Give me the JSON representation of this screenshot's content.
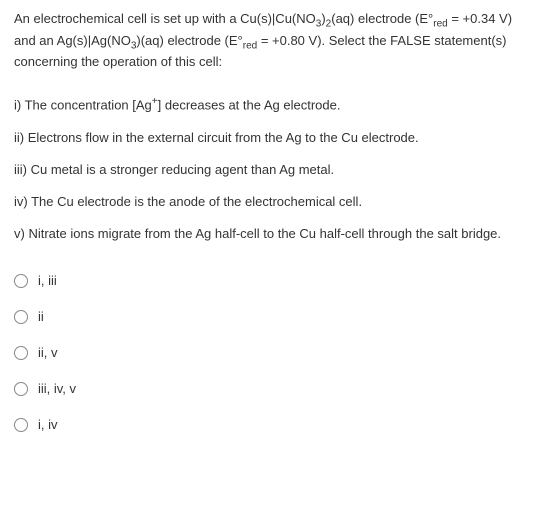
{
  "prompt": {
    "pre": "An electrochemical cell is set up with a Cu(s)|Cu(NO",
    "sub1": "3",
    "mid1": ")",
    "sub2": "2",
    "mid2": "(aq) electrode (E°",
    "sub3": "red",
    "mid3": " = +0.34 V) and an Ag(s)|Ag(NO",
    "sub4": "3",
    "mid4": ")(aq) electrode (E°",
    "sub5": "red",
    "end": " = +0.80 V). Select the FALSE statement(s) concerning the operation of this cell:"
  },
  "statements": {
    "s1_pre": "i) The concentration [Ag",
    "s1_sup": "+",
    "s1_end": "] decreases at the Ag electrode.",
    "s2": "ii) Electrons flow in the external circuit from the Ag to the Cu electrode.",
    "s3": "iii) Cu metal is a stronger reducing agent than Ag metal.",
    "s4": "iv) The Cu electrode is the anode of the electrochemical cell.",
    "s5": "v) Nitrate ions migrate from the Ag half-cell to the Cu half-cell through the salt bridge."
  },
  "options": {
    "o1": "i, iii",
    "o2": "ii",
    "o3": "ii, v",
    "o4": "iii, iv, v",
    "o5": "i, iv"
  },
  "colors": {
    "text": "#333333",
    "background": "#ffffff",
    "radio_border": "#888888"
  }
}
